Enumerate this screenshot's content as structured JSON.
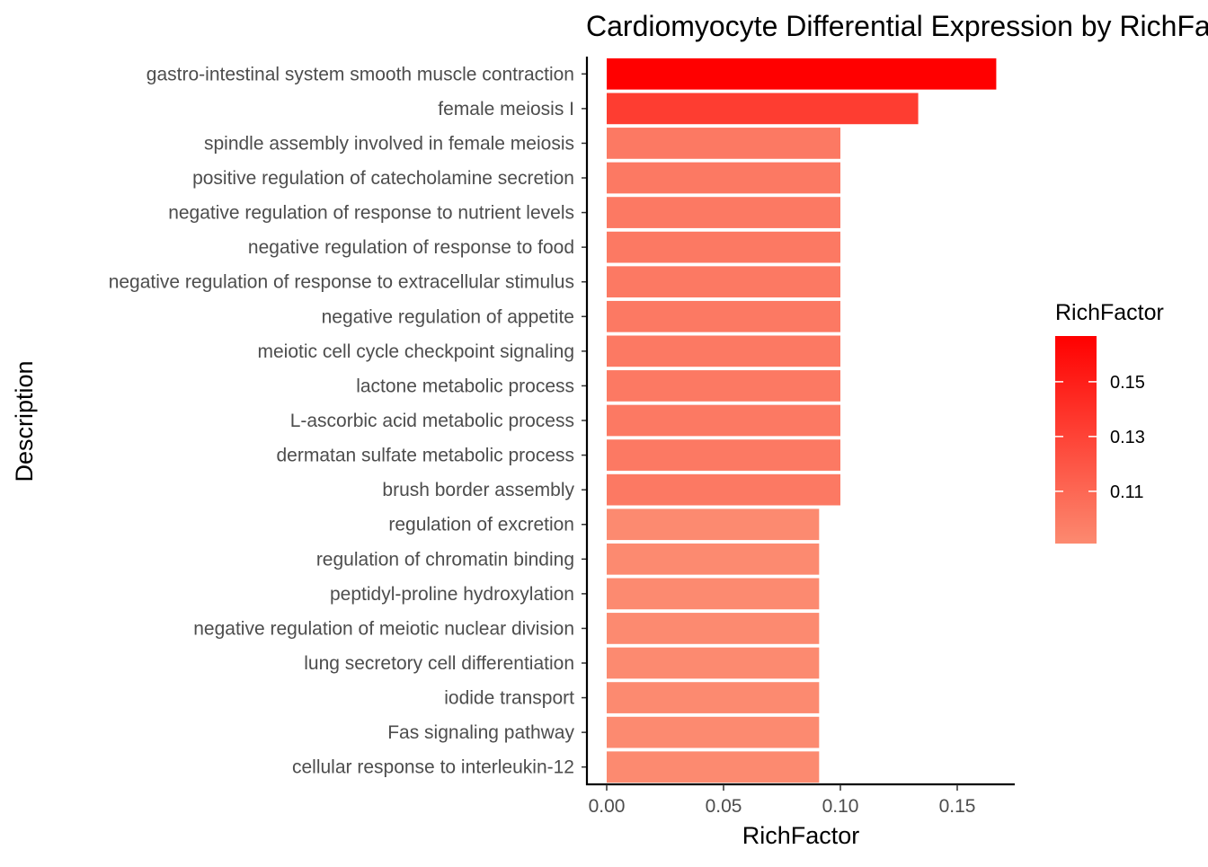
{
  "chart_data": {
    "type": "bar",
    "orientation": "horizontal",
    "title": "Cardiomyocyte Differential Expression by RichFactor",
    "xlabel": "RichFactor",
    "ylabel": "Description",
    "xlim": [
      0,
      0.175
    ],
    "x_ticks": [
      "0.00",
      "0.05",
      "0.10",
      "0.15"
    ],
    "x_tick_values": [
      0,
      0.05,
      0.1,
      0.15
    ],
    "grid": false,
    "categories": [
      "gastro-intestinal system smooth muscle contraction",
      "female meiosis I",
      "spindle assembly involved in female meiosis",
      "positive regulation of catecholamine secretion",
      "negative regulation of response to nutrient levels",
      "negative regulation of response to food",
      "negative regulation of response to extracellular stimulus",
      "negative regulation of appetite",
      "meiotic cell cycle checkpoint signaling",
      "lactone metabolic process",
      "L-ascorbic acid metabolic process",
      "dermatan sulfate metabolic process",
      "brush border assembly",
      "regulation of excretion",
      "regulation of chromatin binding",
      "peptidyl-proline hydroxylation",
      "negative regulation of meiotic nuclear division",
      "lung secretory cell differentiation",
      "iodide transport",
      "Fas signaling pathway",
      "cellular response to interleukin-12"
    ],
    "values": [
      0.1667,
      0.1333,
      0.1,
      0.1,
      0.1,
      0.1,
      0.1,
      0.1,
      0.1,
      0.1,
      0.1,
      0.1,
      0.1,
      0.0909,
      0.0909,
      0.0909,
      0.0909,
      0.0909,
      0.0909,
      0.0909,
      0.0909
    ],
    "color_scale": {
      "variable": "RichFactor",
      "low_color": "#fc8a70",
      "high_color": "#ff0000",
      "range": [
        0.0909,
        0.1667
      ]
    },
    "legend": {
      "title": "RichFactor",
      "position": "right",
      "labels": [
        "0.15",
        "0.13",
        "0.11"
      ],
      "label_values": [
        0.15,
        0.13,
        0.11
      ]
    }
  }
}
